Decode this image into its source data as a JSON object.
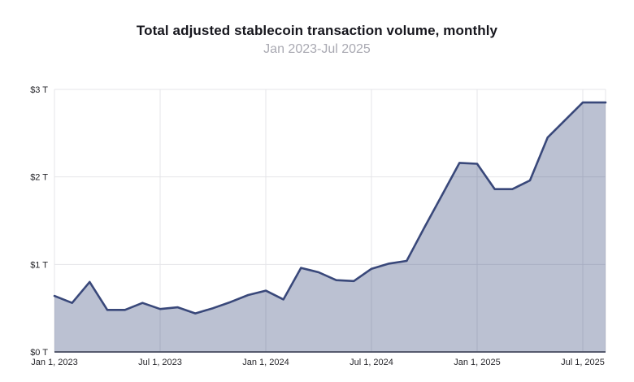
{
  "header": {
    "title": "Total adjusted stablecoin transaction volume, monthly",
    "subtitle": "Jan 2023-Jul 2025"
  },
  "colors": {
    "line": "#39487a",
    "fill_rgba": "rgba(57,72,122,0.34)",
    "grid": "#e4e4e8",
    "zero_line": "#565b6e",
    "tick_label": "#26262b",
    "title": "#16161d",
    "subtitle": "#a9a9b2",
    "background": "#ffffff"
  },
  "chart_data": {
    "type": "area",
    "title": "Total adjusted stablecoin transaction volume, monthly",
    "subtitle": "Jan 2023-Jul 2025",
    "ylabel": "",
    "xlabel": "",
    "unit": "trillion USD",
    "ylim": [
      0,
      3
    ],
    "grid": true,
    "extend_last_to_right_edge": true,
    "x": [
      "Jan 2023",
      "Feb 2023",
      "Mar 2023",
      "Apr 2023",
      "May 2023",
      "Jun 2023",
      "Jul 2023",
      "Aug 2023",
      "Sep 2023",
      "Oct 2023",
      "Nov 2023",
      "Dec 2023",
      "Jan 2024",
      "Feb 2024",
      "Mar 2024",
      "Apr 2024",
      "May 2024",
      "Jun 2024",
      "Jul 2024",
      "Aug 2024",
      "Sep 2024",
      "Oct 2024",
      "Nov 2024",
      "Dec 2024",
      "Jan 2025",
      "Feb 2025",
      "Mar 2025",
      "Apr 2025",
      "May 2025",
      "Jun 2025",
      "Jul 2025"
    ],
    "values": [
      0.64,
      0.56,
      0.8,
      0.48,
      0.48,
      0.56,
      0.49,
      0.51,
      0.44,
      0.5,
      0.57,
      0.65,
      0.7,
      0.6,
      0.96,
      0.91,
      0.82,
      0.81,
      0.95,
      1.01,
      1.04,
      1.42,
      1.79,
      2.16,
      2.15,
      1.86,
      1.86,
      1.96,
      2.45,
      2.65,
      2.85
    ],
    "y_ticks": [
      {
        "value": 0,
        "label": "$0 T"
      },
      {
        "value": 1,
        "label": "$1 T"
      },
      {
        "value": 2,
        "label": "$2 T"
      },
      {
        "value": 3,
        "label": "$3 T"
      }
    ],
    "x_ticks": [
      {
        "index": 0,
        "label": "Jan 1, 2023"
      },
      {
        "index": 6,
        "label": "Jul 1, 2023"
      },
      {
        "index": 12,
        "label": "Jan 1, 2024"
      },
      {
        "index": 18,
        "label": "Jul 1, 2024"
      },
      {
        "index": 24,
        "label": "Jan 1, 2025"
      },
      {
        "index": 30,
        "label": "Jul 1, 2025"
      }
    ]
  }
}
